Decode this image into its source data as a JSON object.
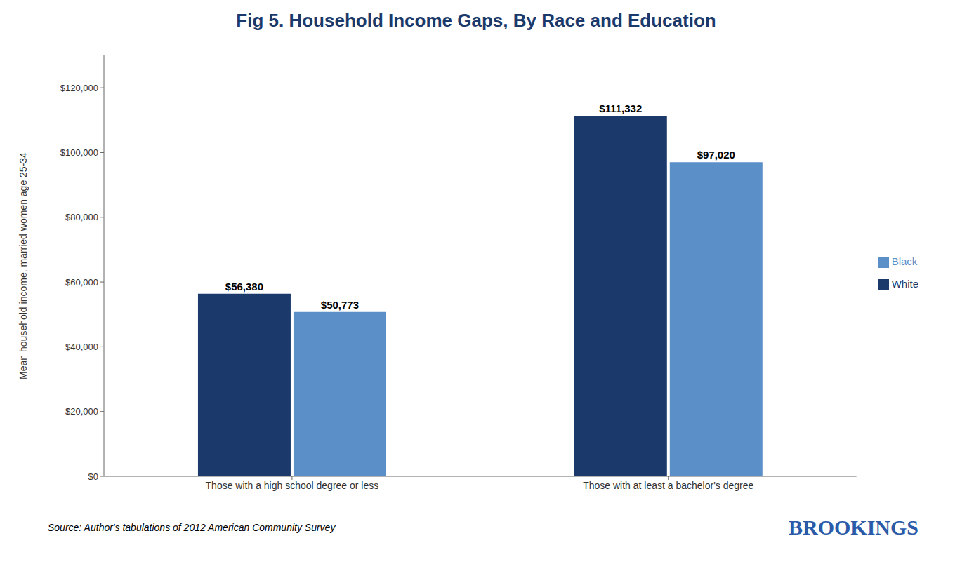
{
  "chart_data": {
    "type": "bar",
    "title": "Fig 5. Household Income Gaps, By Race and Education",
    "ylabel": "Mean household income, married women age 25-34",
    "categories": [
      "Those with a high school degree or less",
      "Those with at least a bachelor's degree"
    ],
    "series": [
      {
        "name": "White",
        "color": "#1b3a6b",
        "values": [
          56380,
          111332
        ],
        "value_labels": [
          "$56,380",
          "$111,332"
        ]
      },
      {
        "name": "Black",
        "color": "#5b8fc7",
        "values": [
          50773,
          97020
        ],
        "value_labels": [
          "$50,773",
          "$97,020"
        ]
      }
    ],
    "ylim": [
      0,
      130000
    ],
    "yticks": [
      {
        "value": 0,
        "label": "$0"
      },
      {
        "value": 20000,
        "label": "$20,000"
      },
      {
        "value": 40000,
        "label": "$40,000"
      },
      {
        "value": 60000,
        "label": "$60,000"
      },
      {
        "value": 80000,
        "label": "$80,000"
      },
      {
        "value": 100000,
        "label": "$100,000"
      },
      {
        "value": 120000,
        "label": "$120,000"
      }
    ],
    "grid": false,
    "legend": "right",
    "data_labels": true,
    "annotations": [
      "Source: Author's tabulations of 2012 American Community Survey",
      "BROOKINGS"
    ]
  }
}
